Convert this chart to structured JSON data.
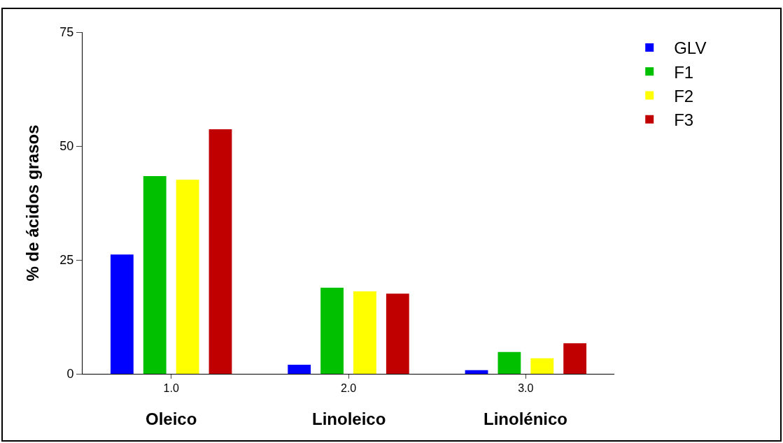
{
  "chart_data": {
    "type": "bar",
    "ylabel": "% de ácidos grasos",
    "categories": [
      "1.0",
      "2.0",
      "3.0"
    ],
    "series": [
      {
        "name": "GLV",
        "color": "#0000ff",
        "values": [
          26.2,
          2.0,
          0.8
        ]
      },
      {
        "name": "F1",
        "color": "#00c000",
        "values": [
          43.4,
          18.9,
          4.8
        ]
      },
      {
        "name": "F2",
        "color": "#ffff00",
        "values": [
          42.6,
          18.1,
          3.4
        ]
      },
      {
        "name": "F3",
        "color": "#c00000",
        "values": [
          53.7,
          17.6,
          6.7
        ]
      }
    ],
    "ylim": [
      0,
      75
    ],
    "yticks": [
      0,
      25,
      50,
      75
    ],
    "legend": "top right",
    "annotations": [
      "Oleico",
      "Linoleico",
      "Linolénico"
    ]
  }
}
